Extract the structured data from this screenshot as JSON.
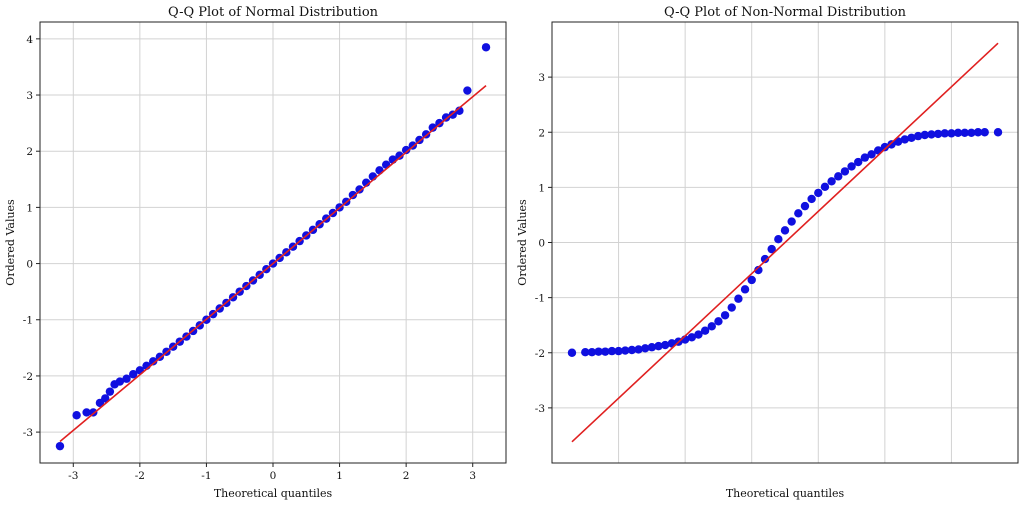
{
  "chart_data": [
    {
      "type": "scatter",
      "title": "Q-Q Plot of Normal Distribution",
      "xlabel": "Theoretical quantiles",
      "ylabel": "Ordered Values",
      "xlim": [
        -3.5,
        3.5
      ],
      "ylim": [
        -3.55,
        4.3
      ],
      "xticks": [
        -3,
        -2,
        -1,
        0,
        1,
        2,
        3
      ],
      "yticks": [
        -3,
        -2,
        -1,
        0,
        1,
        2,
        3,
        4
      ],
      "grid": true,
      "point_color": "#1010e0",
      "line_color": "#e02020",
      "fit_line": {
        "slope": 0.99,
        "intercept": 0.0,
        "x": [
          -3.2,
          3.2
        ]
      },
      "series": [
        {
          "points": [
            [
              -3.2,
              -3.25
            ],
            [
              -2.95,
              -2.7
            ],
            [
              -2.8,
              -2.65
            ],
            [
              -2.7,
              -2.65
            ],
            [
              -2.6,
              -2.48
            ],
            [
              -2.52,
              -2.4
            ],
            [
              -2.45,
              -2.28
            ],
            [
              -2.38,
              -2.15
            ],
            [
              -2.3,
              -2.1
            ],
            [
              -2.2,
              -2.05
            ],
            [
              -2.1,
              -1.97
            ],
            [
              -2.0,
              -1.9
            ],
            [
              -1.9,
              -1.82
            ],
            [
              -1.8,
              -1.74
            ],
            [
              -1.7,
              -1.66
            ],
            [
              -1.6,
              -1.57
            ],
            [
              -1.5,
              -1.48
            ],
            [
              -1.4,
              -1.39
            ],
            [
              -1.3,
              -1.3
            ],
            [
              -1.2,
              -1.2
            ],
            [
              -1.1,
              -1.1
            ],
            [
              -1.0,
              -1.0
            ],
            [
              -0.9,
              -0.9
            ],
            [
              -0.8,
              -0.8
            ],
            [
              -0.7,
              -0.7
            ],
            [
              -0.6,
              -0.6
            ],
            [
              -0.5,
              -0.5
            ],
            [
              -0.4,
              -0.4
            ],
            [
              -0.3,
              -0.3
            ],
            [
              -0.2,
              -0.2
            ],
            [
              -0.1,
              -0.1
            ],
            [
              0.0,
              0.0
            ],
            [
              0.1,
              0.1
            ],
            [
              0.2,
              0.2
            ],
            [
              0.3,
              0.3
            ],
            [
              0.4,
              0.4
            ],
            [
              0.5,
              0.5
            ],
            [
              0.6,
              0.6
            ],
            [
              0.7,
              0.7
            ],
            [
              0.8,
              0.8
            ],
            [
              0.9,
              0.9
            ],
            [
              1.0,
              1.0
            ],
            [
              1.1,
              1.1
            ],
            [
              1.2,
              1.22
            ],
            [
              1.3,
              1.32
            ],
            [
              1.4,
              1.44
            ],
            [
              1.5,
              1.55
            ],
            [
              1.6,
              1.66
            ],
            [
              1.7,
              1.76
            ],
            [
              1.8,
              1.85
            ],
            [
              1.9,
              1.92
            ],
            [
              2.0,
              2.02
            ],
            [
              2.1,
              2.1
            ],
            [
              2.2,
              2.2
            ],
            [
              2.3,
              2.3
            ],
            [
              2.4,
              2.42
            ],
            [
              2.5,
              2.5
            ],
            [
              2.6,
              2.6
            ],
            [
              2.7,
              2.65
            ],
            [
              2.8,
              2.72
            ],
            [
              2.92,
              3.08
            ],
            [
              3.2,
              3.85
            ]
          ]
        }
      ]
    },
    {
      "type": "scatter",
      "title": "Q-Q Plot of Non-Normal Distribution",
      "xlabel": "Theoretical quantiles",
      "ylabel": "Ordered Values",
      "xlim": [
        -3.5,
        3.5
      ],
      "ylim": [
        -4.0,
        4.0
      ],
      "yticks": [
        -3,
        -2,
        -1,
        0,
        1,
        2,
        3
      ],
      "xticks": [],
      "grid": true,
      "point_color": "#1010e0",
      "line_color": "#e02020",
      "fit_line": {
        "slope": 1.13,
        "intercept": 0.0,
        "x": [
          -3.2,
          3.2
        ]
      },
      "series": [
        {
          "points": [
            [
              -3.2,
              -2.0
            ],
            [
              -3.0,
              -1.99
            ],
            [
              -2.9,
              -1.99
            ],
            [
              -2.8,
              -1.98
            ],
            [
              -2.7,
              -1.98
            ],
            [
              -2.6,
              -1.97
            ],
            [
              -2.5,
              -1.97
            ],
            [
              -2.4,
              -1.96
            ],
            [
              -2.3,
              -1.95
            ],
            [
              -2.2,
              -1.94
            ],
            [
              -2.1,
              -1.92
            ],
            [
              -2.0,
              -1.9
            ],
            [
              -1.9,
              -1.88
            ],
            [
              -1.8,
              -1.86
            ],
            [
              -1.7,
              -1.83
            ],
            [
              -1.6,
              -1.8
            ],
            [
              -1.5,
              -1.76
            ],
            [
              -1.4,
              -1.72
            ],
            [
              -1.3,
              -1.67
            ],
            [
              -1.2,
              -1.6
            ],
            [
              -1.1,
              -1.52
            ],
            [
              -1.0,
              -1.43
            ],
            [
              -0.9,
              -1.32
            ],
            [
              -0.8,
              -1.18
            ],
            [
              -0.7,
              -1.02
            ],
            [
              -0.6,
              -0.85
            ],
            [
              -0.5,
              -0.68
            ],
            [
              -0.4,
              -0.5
            ],
            [
              -0.3,
              -0.3
            ],
            [
              -0.2,
              -0.12
            ],
            [
              -0.1,
              0.06
            ],
            [
              0.0,
              0.22
            ],
            [
              0.1,
              0.38
            ],
            [
              0.2,
              0.53
            ],
            [
              0.3,
              0.66
            ],
            [
              0.4,
              0.79
            ],
            [
              0.5,
              0.9
            ],
            [
              0.6,
              1.01
            ],
            [
              0.7,
              1.11
            ],
            [
              0.8,
              1.2
            ],
            [
              0.9,
              1.29
            ],
            [
              1.0,
              1.38
            ],
            [
              1.1,
              1.46
            ],
            [
              1.2,
              1.54
            ],
            [
              1.3,
              1.6
            ],
            [
              1.4,
              1.67
            ],
            [
              1.5,
              1.73
            ],
            [
              1.6,
              1.78
            ],
            [
              1.7,
              1.83
            ],
            [
              1.8,
              1.87
            ],
            [
              1.9,
              1.9
            ],
            [
              2.0,
              1.93
            ],
            [
              2.1,
              1.95
            ],
            [
              2.2,
              1.96
            ],
            [
              2.3,
              1.97
            ],
            [
              2.4,
              1.98
            ],
            [
              2.5,
              1.98
            ],
            [
              2.6,
              1.99
            ],
            [
              2.7,
              1.99
            ],
            [
              2.8,
              1.99
            ],
            [
              2.9,
              2.0
            ],
            [
              3.0,
              2.0
            ],
            [
              3.2,
              2.0
            ]
          ]
        }
      ]
    }
  ]
}
